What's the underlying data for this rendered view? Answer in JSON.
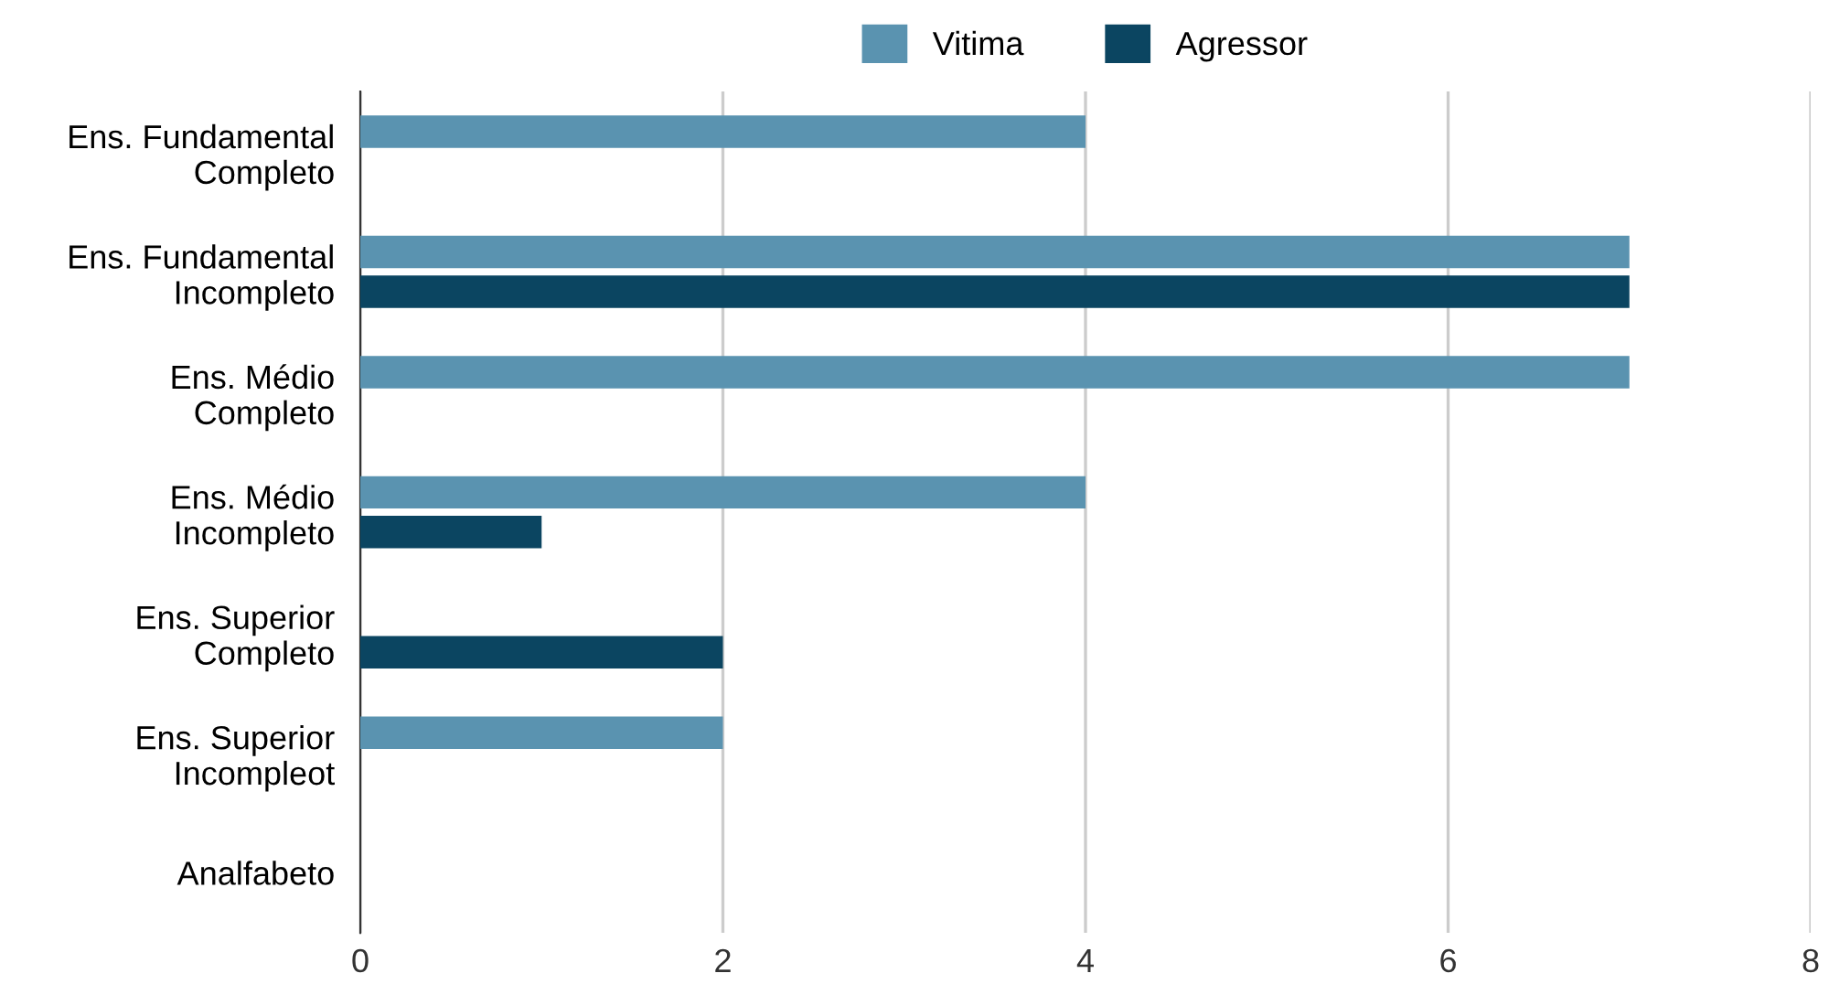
{
  "chart_data": {
    "type": "bar",
    "orientation": "horizontal",
    "categories": [
      "Ens. Fundamental\nCompleto",
      "Ens. Fundamental\nIncompleto",
      "Ens. Médio\nCompleto",
      "Ens. Médio\nIncompleto",
      "Ens. Superior\nCompleto",
      "Ens. Superior\nIncompleot",
      "Analfabeto"
    ],
    "series": [
      {
        "name": "Vitima",
        "color": "#5a93b0",
        "values": [
          4,
          7,
          7,
          4,
          0,
          2,
          0
        ]
      },
      {
        "name": "Agressor",
        "color": "#0b4561",
        "values": [
          0,
          7,
          0,
          1,
          2,
          0,
          0
        ]
      }
    ],
    "xlim": [
      0,
      8
    ],
    "xticks": [
      0,
      2,
      4,
      6,
      8
    ],
    "grid": "x",
    "legend": "top"
  }
}
